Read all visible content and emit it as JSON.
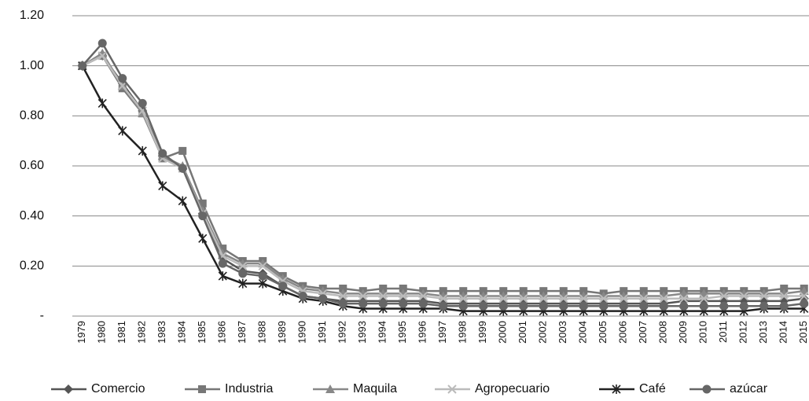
{
  "chart_data": {
    "type": "line",
    "categories": [
      "1979",
      "1980",
      "1981",
      "1982",
      "1983",
      "1984",
      "1985",
      "1986",
      "1987",
      "1988",
      "1989",
      "1990",
      "1991",
      "1992",
      "1993",
      "1994",
      "1995",
      "1996",
      "1997",
      "1998",
      "1999",
      "2000",
      "2001",
      "2002",
      "2003",
      "2004",
      "2005",
      "2006",
      "2007",
      "2008",
      "2009",
      "2010",
      "2011",
      "2012",
      "2013",
      "2014",
      "2015"
    ],
    "ylim": [
      0,
      1.2
    ],
    "yticks": [
      {
        "value": 0,
        "label": "-"
      },
      {
        "value": 0.2,
        "label": "0.20"
      },
      {
        "value": 0.4,
        "label": "0.40"
      },
      {
        "value": 0.6,
        "label": "0.60"
      },
      {
        "value": 0.8,
        "label": "0.80"
      },
      {
        "value": 1.0,
        "label": "1.00"
      },
      {
        "value": 1.2,
        "label": "1.20"
      }
    ],
    "grid": true,
    "legend": "bottom",
    "series": [
      {
        "name": "Comercio",
        "color": "#555555",
        "marker": "diamond",
        "values": [
          1.0,
          1.04,
          0.93,
          0.82,
          0.64,
          0.59,
          0.41,
          0.23,
          0.18,
          0.17,
          0.12,
          0.08,
          0.07,
          0.06,
          0.06,
          0.06,
          0.06,
          0.06,
          0.05,
          0.05,
          0.05,
          0.05,
          0.05,
          0.05,
          0.05,
          0.05,
          0.05,
          0.05,
          0.05,
          0.05,
          0.06,
          0.06,
          0.06,
          0.06,
          0.06,
          0.06,
          0.07
        ]
      },
      {
        "name": "Industria",
        "color": "#777777",
        "marker": "square",
        "values": [
          1.0,
          1.04,
          0.91,
          0.81,
          0.63,
          0.66,
          0.45,
          0.27,
          0.22,
          0.22,
          0.16,
          0.12,
          0.11,
          0.11,
          0.1,
          0.11,
          0.11,
          0.1,
          0.1,
          0.1,
          0.1,
          0.1,
          0.1,
          0.1,
          0.1,
          0.1,
          0.09,
          0.1,
          0.1,
          0.1,
          0.1,
          0.1,
          0.1,
          0.1,
          0.1,
          0.11,
          0.11
        ]
      },
      {
        "name": "Maquila",
        "color": "#888888",
        "marker": "triangle",
        "values": [
          1.0,
          1.05,
          0.92,
          0.81,
          0.64,
          0.6,
          0.42,
          0.25,
          0.21,
          0.21,
          0.15,
          0.11,
          0.1,
          0.09,
          0.09,
          0.09,
          0.09,
          0.09,
          0.08,
          0.08,
          0.08,
          0.08,
          0.08,
          0.08,
          0.08,
          0.08,
          0.08,
          0.08,
          0.08,
          0.08,
          0.09,
          0.09,
          0.09,
          0.09,
          0.09,
          0.09,
          0.1
        ]
      },
      {
        "name": "Agropecuario",
        "color": "#bbbbbb",
        "marker": "x",
        "values": [
          1.0,
          1.04,
          0.92,
          0.82,
          0.63,
          0.59,
          0.41,
          0.24,
          0.2,
          0.2,
          0.14,
          0.1,
          0.09,
          0.08,
          0.08,
          0.08,
          0.08,
          0.08,
          0.07,
          0.07,
          0.07,
          0.07,
          0.07,
          0.07,
          0.07,
          0.07,
          0.07,
          0.07,
          0.07,
          0.07,
          0.07,
          0.07,
          0.08,
          0.08,
          0.08,
          0.08,
          0.08
        ]
      },
      {
        "name": "Café",
        "color": "#222222",
        "marker": "star",
        "values": [
          1.0,
          0.85,
          0.74,
          0.66,
          0.52,
          0.46,
          0.31,
          0.16,
          0.13,
          0.13,
          0.1,
          0.07,
          0.06,
          0.04,
          0.03,
          0.03,
          0.03,
          0.03,
          0.03,
          0.02,
          0.02,
          0.02,
          0.02,
          0.02,
          0.02,
          0.02,
          0.02,
          0.02,
          0.02,
          0.02,
          0.02,
          0.02,
          0.02,
          0.02,
          0.03,
          0.03,
          0.03
        ]
      },
      {
        "name": "azúcar",
        "color": "#666666",
        "marker": "circle",
        "values": [
          1.0,
          1.09,
          0.95,
          0.85,
          0.65,
          0.59,
          0.4,
          0.21,
          0.17,
          0.16,
          0.12,
          0.08,
          0.07,
          0.05,
          0.05,
          0.05,
          0.05,
          0.05,
          0.04,
          0.04,
          0.04,
          0.04,
          0.04,
          0.04,
          0.04,
          0.04,
          0.04,
          0.04,
          0.04,
          0.04,
          0.04,
          0.04,
          0.04,
          0.04,
          0.04,
          0.04,
          0.05
        ]
      }
    ]
  }
}
